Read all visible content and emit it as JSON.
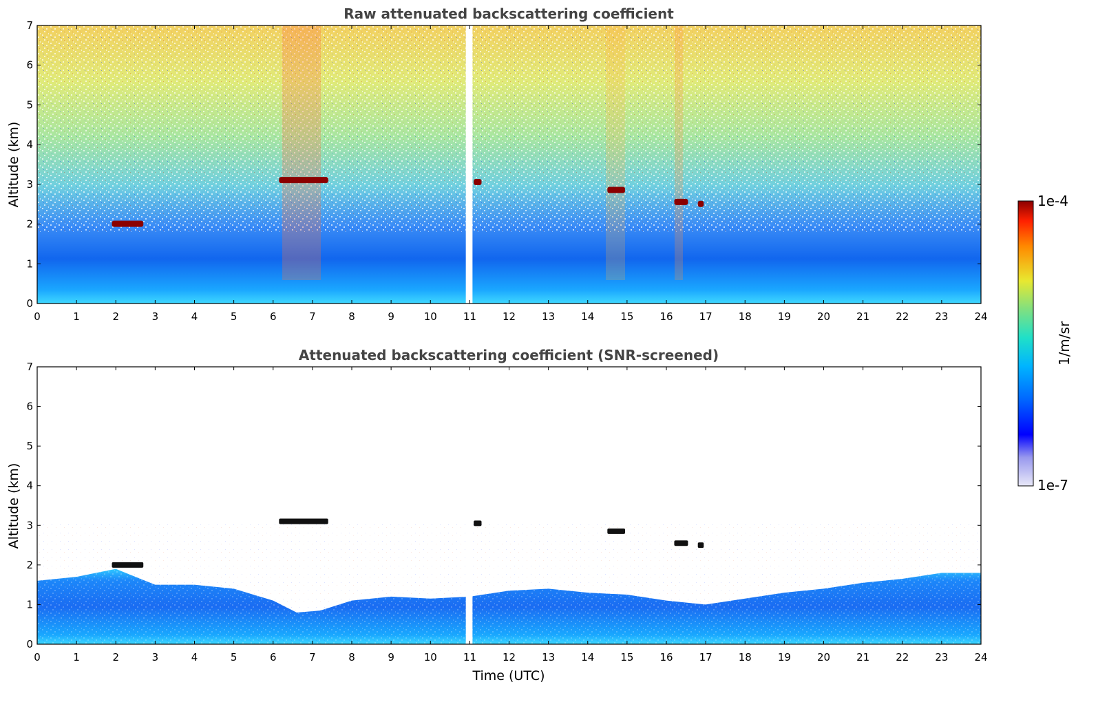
{
  "chart_data": [
    {
      "type": "heatmap",
      "title": "Raw attenuated backscattering coefficient",
      "xlabel": "",
      "ylabel": "Altitude (km)",
      "xlim": [
        0,
        24
      ],
      "ylim": [
        0,
        7
      ],
      "x_ticks": [
        "0",
        "1",
        "2",
        "3",
        "4",
        "5",
        "6",
        "7",
        "8",
        "9",
        "10",
        "11",
        "12",
        "13",
        "14",
        "15",
        "16",
        "17",
        "18",
        "19",
        "20",
        "21",
        "22",
        "23",
        "24"
      ],
      "y_ticks": [
        "0",
        "1",
        "2",
        "3",
        "4",
        "5",
        "6",
        "7"
      ],
      "data_gap_utc": [
        10.9,
        11.0
      ],
      "cloud_features": [
        {
          "t_start": 1.9,
          "t_end": 2.7,
          "altitude_km": 2.0
        },
        {
          "t_start": 6.15,
          "t_end": 7.4,
          "altitude_km": 3.1
        },
        {
          "t_start": 11.1,
          "t_end": 11.3,
          "altitude_km": 3.05
        },
        {
          "t_start": 14.5,
          "t_end": 14.95,
          "altitude_km": 2.85
        },
        {
          "t_start": 16.2,
          "t_end": 16.55,
          "altitude_km": 2.55
        },
        {
          "t_start": 16.8,
          "t_end": 16.95,
          "altitude_km": 2.5
        }
      ],
      "grid": false
    },
    {
      "type": "heatmap",
      "title": "Attenuated backscattering coefficient (SNR-screened)",
      "xlabel": "Time (UTC)",
      "ylabel": "Altitude (km)",
      "xlim": [
        0,
        24
      ],
      "ylim": [
        0,
        7
      ],
      "x_ticks": [
        "0",
        "1",
        "2",
        "3",
        "4",
        "5",
        "6",
        "7",
        "8",
        "9",
        "10",
        "11",
        "12",
        "13",
        "14",
        "15",
        "16",
        "17",
        "18",
        "19",
        "20",
        "21",
        "22",
        "23",
        "24"
      ],
      "y_ticks": [
        "0",
        "1",
        "2",
        "3",
        "4",
        "5",
        "6",
        "7"
      ],
      "boundary_layer_top_km": [
        [
          0,
          1.6
        ],
        [
          1,
          1.7
        ],
        [
          2,
          1.9
        ],
        [
          3,
          1.5
        ],
        [
          4,
          1.5
        ],
        [
          5,
          1.4
        ],
        [
          6,
          1.1
        ],
        [
          6.6,
          0.8
        ],
        [
          7.2,
          0.85
        ],
        [
          8,
          1.1
        ],
        [
          9,
          1.2
        ],
        [
          10,
          1.15
        ],
        [
          11,
          1.2
        ],
        [
          12,
          1.35
        ],
        [
          13,
          1.4
        ],
        [
          14,
          1.3
        ],
        [
          15,
          1.25
        ],
        [
          16,
          1.1
        ],
        [
          17,
          1.0
        ],
        [
          18,
          1.15
        ],
        [
          19,
          1.3
        ],
        [
          20,
          1.4
        ],
        [
          21,
          1.55
        ],
        [
          22,
          1.65
        ],
        [
          23,
          1.8
        ],
        [
          24,
          1.8
        ]
      ],
      "data_gap_utc": [
        10.9,
        11.0
      ],
      "grid": false
    }
  ],
  "colorbar": {
    "label": "1/m/sr",
    "max_label": "1e-4",
    "min_label": "1e-7",
    "colormap": [
      "#e8e8f8",
      "#b8b8f0",
      "#0000ff",
      "#0060ff",
      "#00b0ff",
      "#20e0c0",
      "#80e080",
      "#e0e030",
      "#ff8000",
      "#ff2000",
      "#8b0000"
    ]
  }
}
